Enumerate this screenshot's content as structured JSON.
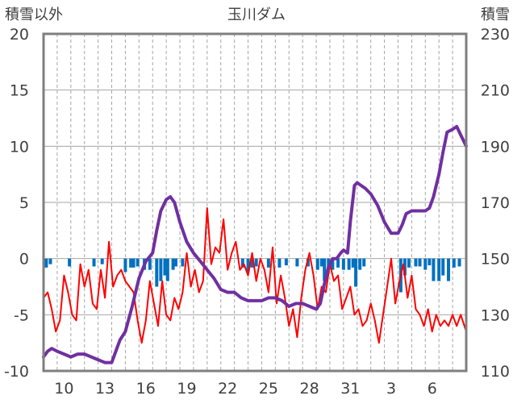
{
  "chart_data": {
    "type": "line",
    "title": "玉川ダム",
    "left_axis_label": "積雪以外",
    "right_axis_label": "積雪",
    "left_ylim": [
      -10,
      20
    ],
    "right_ylim": [
      110,
      230
    ],
    "left_ticks": [
      "20",
      "15",
      "10",
      "5",
      "0",
      "-5",
      "-10"
    ],
    "right_ticks": [
      "230",
      "210",
      "190",
      "170",
      "150",
      "130",
      "110"
    ],
    "x_range": [
      0,
      31
    ],
    "x_ticks": [
      {
        "x": 1.5,
        "label": "10"
      },
      {
        "x": 4.5,
        "label": "13"
      },
      {
        "x": 7.5,
        "label": "16"
      },
      {
        "x": 10.5,
        "label": "19"
      },
      {
        "x": 13.5,
        "label": "22"
      },
      {
        "x": 16.5,
        "label": "25"
      },
      {
        "x": 19.5,
        "label": "28"
      },
      {
        "x": 22.5,
        "label": "31"
      },
      {
        "x": 25.5,
        "label": "3"
      },
      {
        "x": 28.5,
        "label": "6"
      }
    ],
    "grid": "vertical dashed daily lines, horizontal solid lines every 5",
    "colors": {
      "snow": "#7030A0",
      "temperature": "#FF0000",
      "precipitation": "#0070C0",
      "frame": "#7F7F7F",
      "grid": "#A6A6A6"
    },
    "series": [
      {
        "role": "snow-depth",
        "axis": "right",
        "color": "#7030A0",
        "points": [
          [
            0.0,
            115
          ],
          [
            0.3,
            117
          ],
          [
            0.6,
            118
          ],
          [
            1.0,
            117
          ],
          [
            1.5,
            116
          ],
          [
            2.0,
            115
          ],
          [
            2.5,
            116
          ],
          [
            3.0,
            116
          ],
          [
            3.5,
            115
          ],
          [
            4.0,
            114
          ],
          [
            4.5,
            113
          ],
          [
            5.0,
            113
          ],
          [
            5.3,
            117
          ],
          [
            5.6,
            121
          ],
          [
            6.0,
            124
          ],
          [
            6.5,
            133
          ],
          [
            7.0,
            143
          ],
          [
            7.5,
            149
          ],
          [
            8.0,
            152
          ],
          [
            8.3,
            160
          ],
          [
            8.6,
            167
          ],
          [
            9.0,
            171
          ],
          [
            9.3,
            172
          ],
          [
            9.6,
            170
          ],
          [
            10.0,
            163
          ],
          [
            10.5,
            156
          ],
          [
            11.0,
            152
          ],
          [
            11.5,
            149
          ],
          [
            12.0,
            146
          ],
          [
            12.5,
            143
          ],
          [
            13.0,
            139
          ],
          [
            13.5,
            138
          ],
          [
            14.0,
            138
          ],
          [
            14.5,
            136
          ],
          [
            15.0,
            135
          ],
          [
            15.5,
            135
          ],
          [
            16.0,
            135
          ],
          [
            16.5,
            136
          ],
          [
            17.0,
            136
          ],
          [
            17.5,
            135
          ],
          [
            18.0,
            133
          ],
          [
            18.5,
            134
          ],
          [
            19.0,
            134
          ],
          [
            19.5,
            133
          ],
          [
            20.0,
            132
          ],
          [
            20.3,
            134
          ],
          [
            20.6,
            141
          ],
          [
            20.9,
            147
          ],
          [
            21.2,
            150
          ],
          [
            21.5,
            150
          ],
          [
            21.8,
            152
          ],
          [
            22.0,
            153
          ],
          [
            22.3,
            152
          ],
          [
            22.5,
            163
          ],
          [
            22.8,
            176
          ],
          [
            23.0,
            177
          ],
          [
            23.3,
            176
          ],
          [
            23.6,
            175
          ],
          [
            24.0,
            173
          ],
          [
            24.5,
            169
          ],
          [
            25.0,
            163
          ],
          [
            25.5,
            159
          ],
          [
            26.0,
            159
          ],
          [
            26.3,
            162
          ],
          [
            26.6,
            166
          ],
          [
            27.0,
            167
          ],
          [
            27.5,
            167
          ],
          [
            28.0,
            167
          ],
          [
            28.3,
            168
          ],
          [
            28.6,
            172
          ],
          [
            29.0,
            180
          ],
          [
            29.3,
            188
          ],
          [
            29.6,
            195
          ],
          [
            30.0,
            196
          ],
          [
            30.3,
            197
          ],
          [
            30.6,
            194
          ],
          [
            31.0,
            190
          ]
        ]
      },
      {
        "role": "other-line",
        "axis": "left",
        "color": "#FF0000",
        "points": [
          [
            0.0,
            -3.5
          ],
          [
            0.3,
            -3.0
          ],
          [
            0.6,
            -4.5
          ],
          [
            0.9,
            -6.5
          ],
          [
            1.2,
            -5.5
          ],
          [
            1.5,
            -1.5
          ],
          [
            1.8,
            -3.0
          ],
          [
            2.1,
            -5.0
          ],
          [
            2.4,
            -5.5
          ],
          [
            2.7,
            -0.5
          ],
          [
            3.0,
            -2.5
          ],
          [
            3.3,
            -1.0
          ],
          [
            3.6,
            -4.0
          ],
          [
            3.9,
            -4.5
          ],
          [
            4.2,
            -1.0
          ],
          [
            4.5,
            -3.5
          ],
          [
            4.8,
            1.5
          ],
          [
            5.1,
            -2.5
          ],
          [
            5.4,
            -1.5
          ],
          [
            5.7,
            -1.0
          ],
          [
            6.0,
            -2.0
          ],
          [
            6.3,
            -2.5
          ],
          [
            6.6,
            -3.0
          ],
          [
            6.9,
            -5.5
          ],
          [
            7.2,
            -7.5
          ],
          [
            7.5,
            -5.5
          ],
          [
            7.8,
            -2.0
          ],
          [
            8.1,
            -4.0
          ],
          [
            8.4,
            -6.0
          ],
          [
            8.7,
            -2.0
          ],
          [
            9.0,
            -5.0
          ],
          [
            9.3,
            -5.5
          ],
          [
            9.6,
            -3.5
          ],
          [
            9.9,
            -4.5
          ],
          [
            10.2,
            -3.0
          ],
          [
            10.5,
            0.5
          ],
          [
            10.8,
            -2.5
          ],
          [
            11.1,
            -1.0
          ],
          [
            11.4,
            -3.0
          ],
          [
            11.7,
            -2.0
          ],
          [
            12.0,
            4.5
          ],
          [
            12.3,
            -0.5
          ],
          [
            12.6,
            1.0
          ],
          [
            12.9,
            0.5
          ],
          [
            13.2,
            3.5
          ],
          [
            13.5,
            -1.0
          ],
          [
            13.8,
            0.5
          ],
          [
            14.1,
            1.5
          ],
          [
            14.4,
            -1.0
          ],
          [
            14.7,
            -0.5
          ],
          [
            15.0,
            -1.5
          ],
          [
            15.3,
            0.5
          ],
          [
            15.6,
            -2.0
          ],
          [
            15.9,
            0.0
          ],
          [
            16.2,
            -1.0
          ],
          [
            16.5,
            -3.0
          ],
          [
            16.8,
            1.0
          ],
          [
            17.1,
            -4.0
          ],
          [
            17.4,
            -1.5
          ],
          [
            17.7,
            -3.5
          ],
          [
            18.0,
            -6.0
          ],
          [
            18.3,
            -4.5
          ],
          [
            18.6,
            -7.0
          ],
          [
            18.9,
            -3.5
          ],
          [
            19.2,
            -1.0
          ],
          [
            19.5,
            0.5
          ],
          [
            19.8,
            -1.5
          ],
          [
            20.1,
            -4.5
          ],
          [
            20.4,
            -2.5
          ],
          [
            20.7,
            -3.0
          ],
          [
            21.0,
            -0.5
          ],
          [
            21.3,
            -2.0
          ],
          [
            21.6,
            -1.5
          ],
          [
            21.9,
            -4.5
          ],
          [
            22.2,
            -3.5
          ],
          [
            22.5,
            -2.5
          ],
          [
            22.8,
            -5.0
          ],
          [
            23.1,
            -4.5
          ],
          [
            23.4,
            -6.0
          ],
          [
            23.7,
            -5.5
          ],
          [
            24.0,
            -4.0
          ],
          [
            24.3,
            -5.5
          ],
          [
            24.6,
            -7.5
          ],
          [
            24.9,
            -5.0
          ],
          [
            25.2,
            -2.5
          ],
          [
            25.5,
            0.0
          ],
          [
            25.8,
            -4.0
          ],
          [
            26.1,
            -2.0
          ],
          [
            26.4,
            -0.5
          ],
          [
            26.7,
            -3.5
          ],
          [
            27.0,
            -1.5
          ],
          [
            27.3,
            -4.5
          ],
          [
            27.6,
            -5.0
          ],
          [
            27.9,
            -6.0
          ],
          [
            28.2,
            -4.5
          ],
          [
            28.5,
            -6.5
          ],
          [
            28.8,
            -5.0
          ],
          [
            29.1,
            -6.0
          ],
          [
            29.4,
            -5.5
          ],
          [
            29.7,
            -6.0
          ],
          [
            30.0,
            -5.0
          ],
          [
            30.3,
            -6.0
          ],
          [
            30.6,
            -5.0
          ],
          [
            31.0,
            -6.5
          ]
        ]
      }
    ],
    "bars": {
      "role": "precipitation",
      "axis": "left",
      "color": "#0070C0",
      "data": [
        [
          0.2,
          -0.8
        ],
        [
          0.5,
          -0.5
        ],
        [
          1.9,
          -0.7
        ],
        [
          3.7,
          -0.7
        ],
        [
          4.3,
          -0.5
        ],
        [
          6.0,
          -1.2
        ],
        [
          6.4,
          -0.8
        ],
        [
          6.6,
          -0.8
        ],
        [
          6.9,
          -0.7
        ],
        [
          7.4,
          -1.0
        ],
        [
          7.8,
          -1.0
        ],
        [
          8.3,
          -2.5
        ],
        [
          8.6,
          -2.0
        ],
        [
          8.9,
          -1.5
        ],
        [
          9.1,
          -2.0
        ],
        [
          9.5,
          -1.0
        ],
        [
          9.7,
          -0.7
        ],
        [
          10.2,
          -0.7
        ],
        [
          14.6,
          -0.8
        ],
        [
          15.0,
          -1.2
        ],
        [
          15.3,
          -0.8
        ],
        [
          15.6,
          -0.7
        ],
        [
          16.5,
          -0.8
        ],
        [
          17.3,
          -0.8
        ],
        [
          17.8,
          -0.6
        ],
        [
          18.6,
          -0.7
        ],
        [
          19.4,
          -0.7
        ],
        [
          20.1,
          -1.0
        ],
        [
          20.4,
          -0.7
        ],
        [
          20.6,
          -2.0
        ],
        [
          20.9,
          -1.0
        ],
        [
          21.2,
          -1.0
        ],
        [
          21.6,
          -0.8
        ],
        [
          22.0,
          -1.0
        ],
        [
          22.4,
          -1.0
        ],
        [
          22.7,
          -0.8
        ],
        [
          22.9,
          -2.5
        ],
        [
          23.2,
          -1.0
        ],
        [
          23.5,
          -0.7
        ],
        [
          26.2,
          -3.0
        ],
        [
          26.5,
          -1.5
        ],
        [
          26.8,
          -0.8
        ],
        [
          27.3,
          -0.7
        ],
        [
          27.6,
          -0.7
        ],
        [
          28.0,
          -1.0
        ],
        [
          28.3,
          -0.6
        ],
        [
          28.6,
          -2.0
        ],
        [
          29.0,
          -2.0
        ],
        [
          29.3,
          -1.5
        ],
        [
          29.7,
          -2.0
        ],
        [
          30.1,
          -0.8
        ],
        [
          30.5,
          -0.7
        ]
      ]
    }
  }
}
